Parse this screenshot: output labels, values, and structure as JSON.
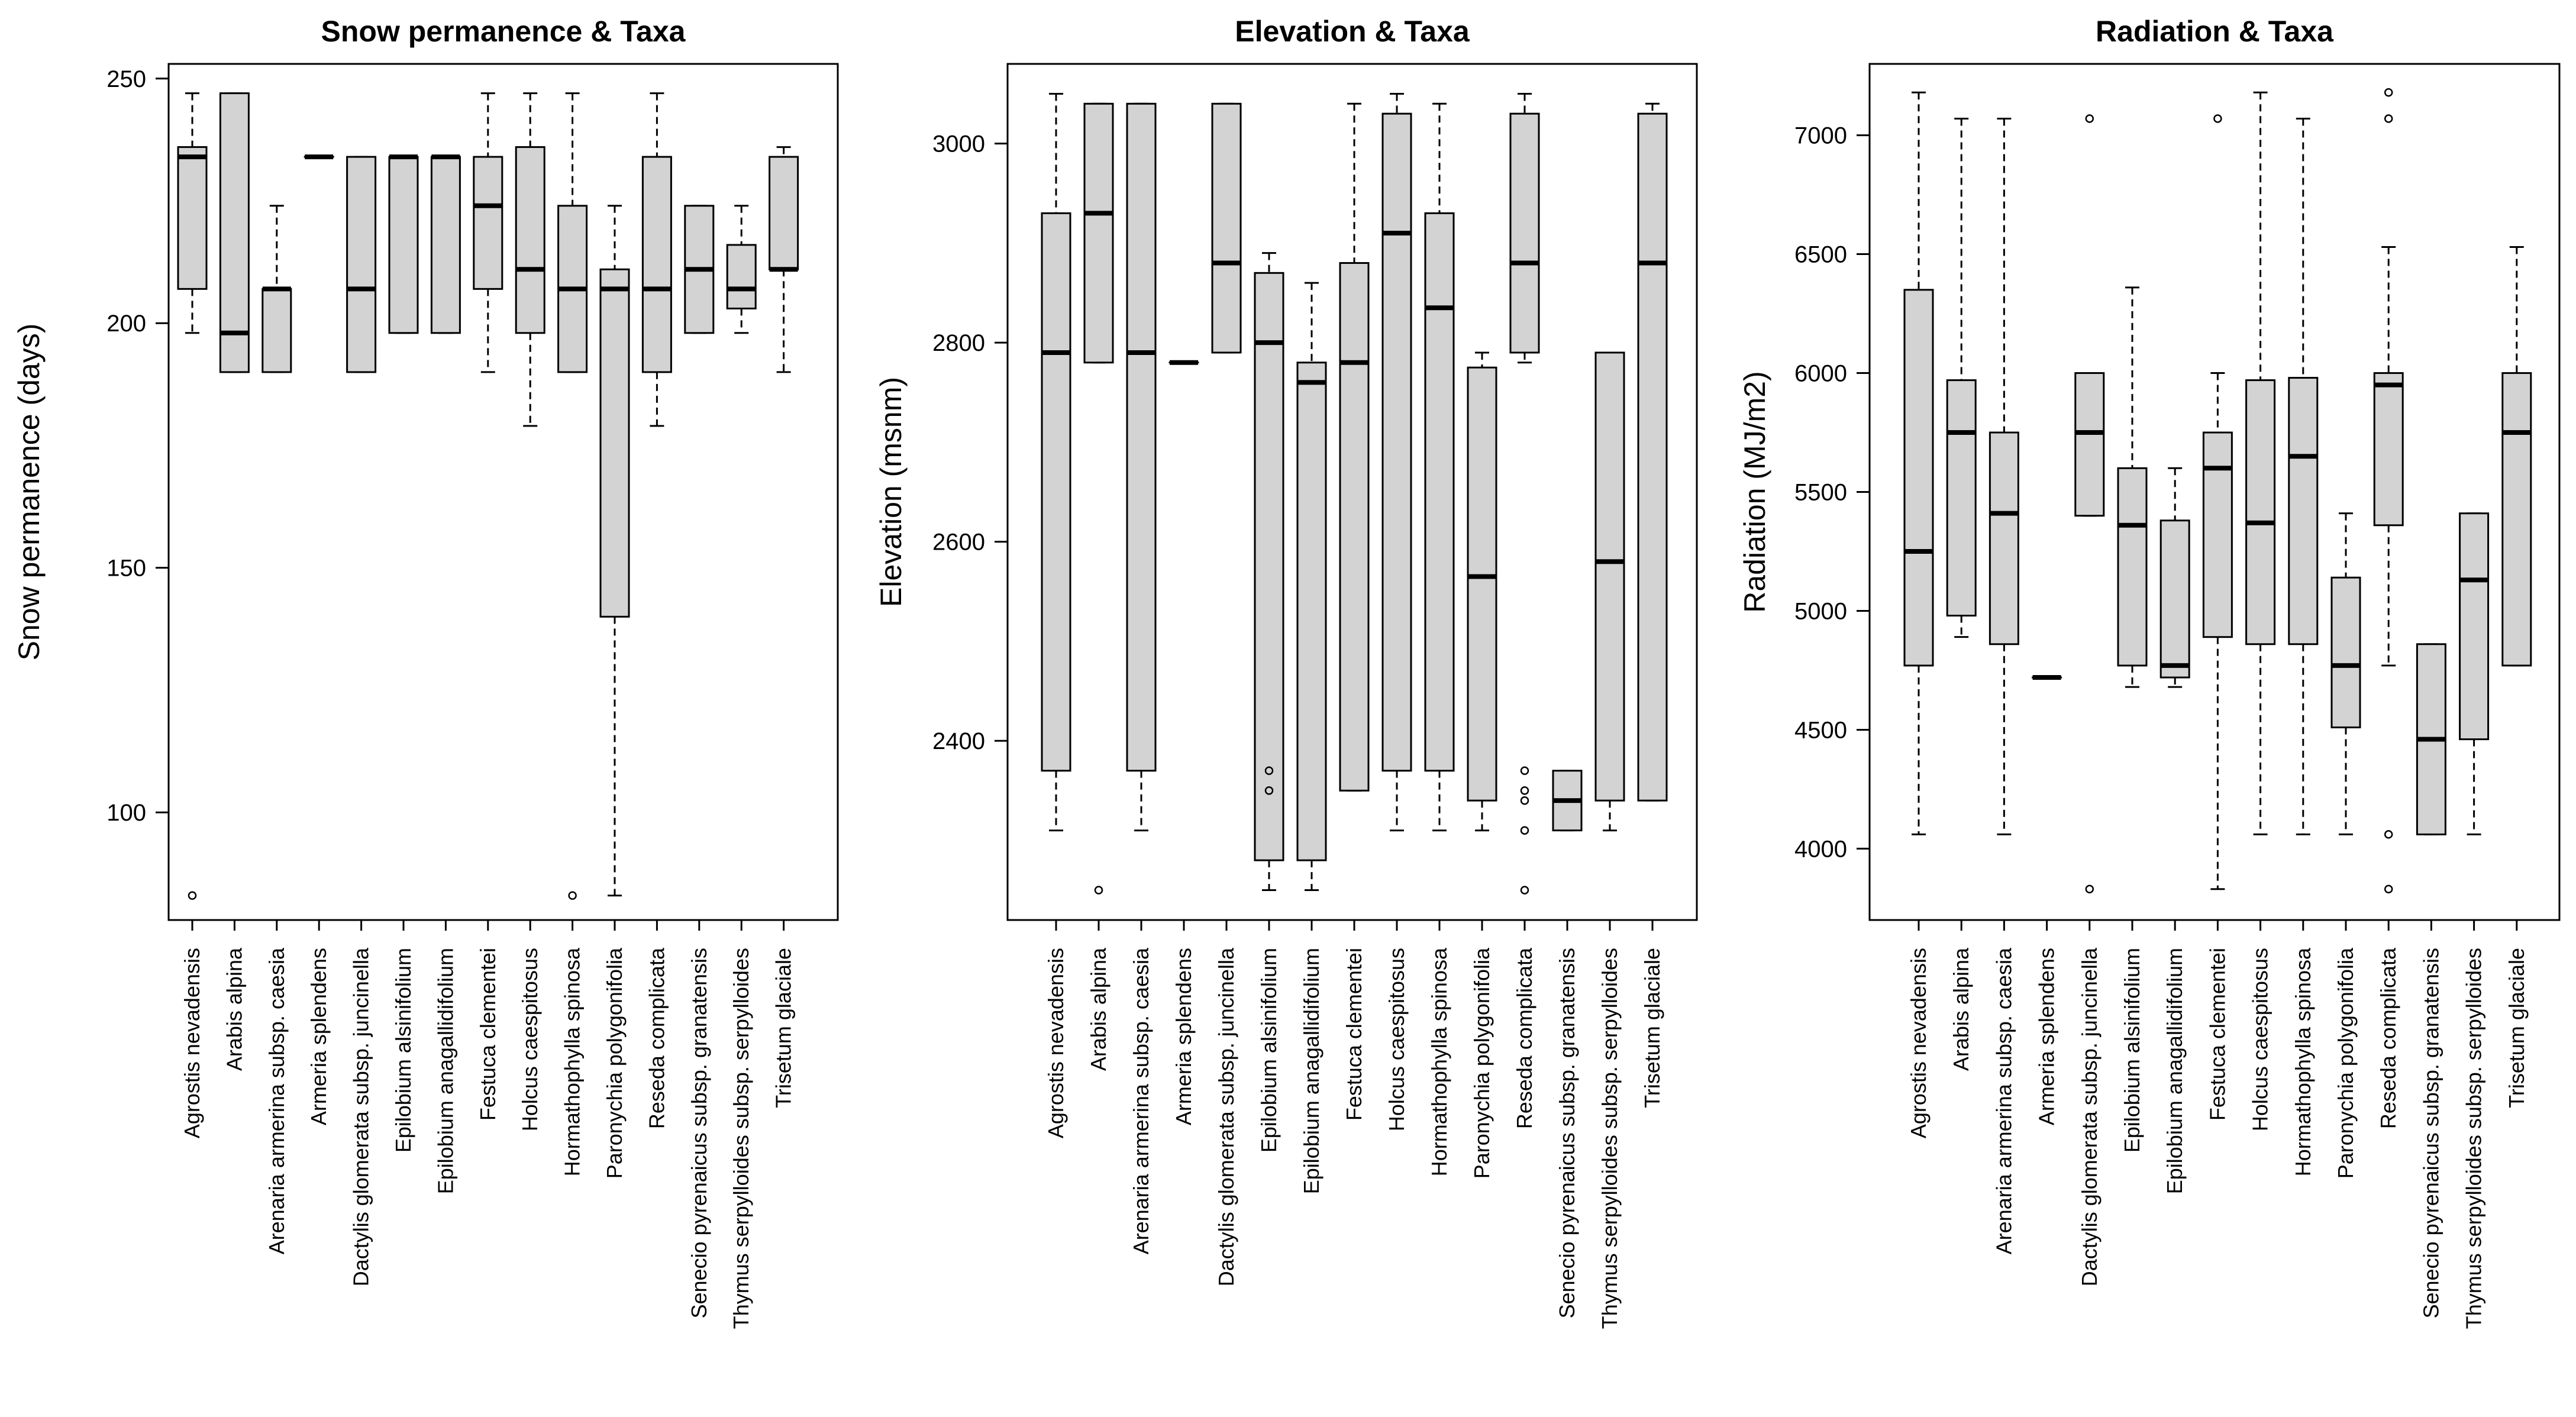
{
  "figure": {
    "panel_titles": [
      "Snow permanence & Taxa",
      "Elevation & Taxa",
      "Radiation & Taxa"
    ]
  },
  "colors": {
    "box_fill": "#d3d3d3",
    "stroke": "#000000",
    "background": "#ffffff"
  },
  "chart_data": [
    {
      "type": "boxplot",
      "title": "Snow permanence & Taxa",
      "xlabel": "",
      "ylabel": "Snow permanence (days)",
      "ylim": [
        78,
        253
      ],
      "yticks": [
        100,
        150,
        200,
        250
      ],
      "grid": false,
      "categories": [
        "Agrostis nevadensis",
        "Arabis alpina",
        "Arenaria armerina subsp. caesia",
        "Armeria splendens",
        "Dactylis glomerata subsp. juncinella",
        "Epilobium alsinifolium",
        "Epilobium anagallidifolium",
        "Festuca clementei",
        "Holcus caespitosus",
        "Hormathophylla spinosa",
        "Paronychia polygonifolia",
        "Reseda complicata",
        "Senecio pyrenaicus subsp. granatensis",
        "Thymus serpylloides subsp. serpylloides",
        "Trisetum glaciale"
      ],
      "boxes": [
        {
          "whisker_low": 198,
          "q1": 207,
          "median": 234,
          "q3": 236,
          "whisker_high": 247,
          "outliers": [
            83
          ]
        },
        {
          "whisker_low": 190,
          "q1": 190,
          "median": 198,
          "q3": 247,
          "whisker_high": 247,
          "outliers": []
        },
        {
          "whisker_low": 190,
          "q1": 190,
          "median": 207,
          "q3": 207,
          "whisker_high": 224,
          "outliers": []
        },
        {
          "whisker_low": 234,
          "q1": 234,
          "median": 234,
          "q3": 234,
          "whisker_high": 234,
          "outliers": []
        },
        {
          "whisker_low": 190,
          "q1": 190,
          "median": 207,
          "q3": 234,
          "whisker_high": 234,
          "outliers": []
        },
        {
          "whisker_low": 198,
          "q1": 198,
          "median": 234,
          "q3": 234,
          "whisker_high": 234,
          "outliers": []
        },
        {
          "whisker_low": 198,
          "q1": 198,
          "median": 234,
          "q3": 234,
          "whisker_high": 234,
          "outliers": []
        },
        {
          "whisker_low": 190,
          "q1": 207,
          "median": 224,
          "q3": 234,
          "whisker_high": 247,
          "outliers": []
        },
        {
          "whisker_low": 179,
          "q1": 198,
          "median": 211,
          "q3": 236,
          "whisker_high": 247,
          "outliers": []
        },
        {
          "whisker_low": 190,
          "q1": 190,
          "median": 207,
          "q3": 224,
          "whisker_high": 247,
          "outliers": [
            83
          ]
        },
        {
          "whisker_low": 83,
          "q1": 140,
          "median": 207,
          "q3": 211,
          "whisker_high": 224,
          "outliers": []
        },
        {
          "whisker_low": 179,
          "q1": 190,
          "median": 207,
          "q3": 234,
          "whisker_high": 247,
          "outliers": []
        },
        {
          "whisker_low": 198,
          "q1": 198,
          "median": 211,
          "q3": 224,
          "whisker_high": 224,
          "outliers": []
        },
        {
          "whisker_low": 198,
          "q1": 203,
          "median": 207,
          "q3": 216,
          "whisker_high": 224,
          "outliers": []
        },
        {
          "whisker_low": 190,
          "q1": 211,
          "median": 211,
          "q3": 234,
          "whisker_high": 236,
          "outliers": []
        }
      ]
    },
    {
      "type": "boxplot",
      "title": "Elevation & Taxa",
      "xlabel": "",
      "ylabel": "Elevation (msnm)",
      "ylim": [
        2220,
        3080
      ],
      "yticks": [
        2400,
        2600,
        2800,
        3000
      ],
      "grid": false,
      "categories": [
        "Agrostis nevadensis",
        "Arabis alpina",
        "Arenaria armerina subsp. caesia",
        "Armeria splendens",
        "Dactylis glomerata subsp. juncinella",
        "Epilobium alsinifolium",
        "Epilobium anagallidifolium",
        "Festuca clementei",
        "Holcus caespitosus",
        "Hormathophylla spinosa",
        "Paronychia polygonifolia",
        "Reseda complicata",
        "Senecio pyrenaicus subsp. granatensis",
        "Thymus serpylloides subsp. serpylloides",
        "Trisetum glaciale"
      ],
      "boxes": [
        {
          "whisker_low": 2310,
          "q1": 2370,
          "median": 2790,
          "q3": 2930,
          "whisker_high": 3050,
          "outliers": []
        },
        {
          "whisker_low": 2780,
          "q1": 2780,
          "median": 2930,
          "q3": 3040,
          "whisker_high": 3040,
          "outliers": [
            2250
          ]
        },
        {
          "whisker_low": 2310,
          "q1": 2370,
          "median": 2790,
          "q3": 3040,
          "whisker_high": 3040,
          "outliers": []
        },
        {
          "whisker_low": 2780,
          "q1": 2780,
          "median": 2780,
          "q3": 2780,
          "whisker_high": 2780,
          "outliers": []
        },
        {
          "whisker_low": 2790,
          "q1": 2790,
          "median": 2880,
          "q3": 3040,
          "whisker_high": 3040,
          "outliers": []
        },
        {
          "whisker_low": 2250,
          "q1": 2280,
          "median": 2800,
          "q3": 2870,
          "whisker_high": 2890,
          "outliers": [
            2370,
            2350
          ]
        },
        {
          "whisker_low": 2250,
          "q1": 2280,
          "median": 2760,
          "q3": 2780,
          "whisker_high": 2860,
          "outliers": []
        },
        {
          "whisker_low": 2350,
          "q1": 2350,
          "median": 2780,
          "q3": 2880,
          "whisker_high": 3040,
          "outliers": []
        },
        {
          "whisker_low": 2310,
          "q1": 2370,
          "median": 2910,
          "q3": 3030,
          "whisker_high": 3050,
          "outliers": []
        },
        {
          "whisker_low": 2310,
          "q1": 2370,
          "median": 2835,
          "q3": 2930,
          "whisker_high": 3040,
          "outliers": []
        },
        {
          "whisker_low": 2310,
          "q1": 2340,
          "median": 2565,
          "q3": 2775,
          "whisker_high": 2790,
          "outliers": []
        },
        {
          "whisker_low": 2780,
          "q1": 2790,
          "median": 2880,
          "q3": 3030,
          "whisker_high": 3050,
          "outliers": [
            2370,
            2350,
            2340,
            2310,
            2250
          ]
        },
        {
          "whisker_low": 2310,
          "q1": 2310,
          "median": 2340,
          "q3": 2370,
          "whisker_high": 2370,
          "outliers": []
        },
        {
          "whisker_low": 2310,
          "q1": 2340,
          "median": 2580,
          "q3": 2790,
          "whisker_high": 2790,
          "outliers": []
        },
        {
          "whisker_low": 2340,
          "q1": 2340,
          "median": 2880,
          "q3": 3030,
          "whisker_high": 3040,
          "outliers": []
        }
      ]
    },
    {
      "type": "boxplot",
      "title": "Radiation & Taxa",
      "xlabel": "",
      "ylabel": "Radiation (MJ/m2)",
      "ylim": [
        3700,
        7300
      ],
      "yticks": [
        4000,
        4500,
        5000,
        5500,
        6000,
        6500,
        7000
      ],
      "grid": false,
      "categories": [
        "Agrostis nevadensis",
        "Arabis alpina",
        "Arenaria armerina subsp. caesia",
        "Armeria splendens",
        "Dactylis glomerata subsp. juncinella",
        "Epilobium alsinifolium",
        "Epilobium anagallidifolium",
        "Festuca clementei",
        "Holcus caespitosus",
        "Hormathophylla spinosa",
        "Paronychia polygonifolia",
        "Reseda complicata",
        "Senecio pyrenaicus subsp. granatensis",
        "Thymus serpylloides subsp. serpylloides",
        "Trisetum glaciale"
      ],
      "boxes": [
        {
          "whisker_low": 4060,
          "q1": 4770,
          "median": 5250,
          "q3": 6350,
          "whisker_high": 7180,
          "outliers": []
        },
        {
          "whisker_low": 4890,
          "q1": 4980,
          "median": 5750,
          "q3": 5970,
          "whisker_high": 7070,
          "outliers": []
        },
        {
          "whisker_low": 4060,
          "q1": 4860,
          "median": 5410,
          "q3": 5750,
          "whisker_high": 7070,
          "outliers": []
        },
        {
          "whisker_low": 4720,
          "q1": 4720,
          "median": 4720,
          "q3": 4720,
          "whisker_high": 4720,
          "outliers": []
        },
        {
          "whisker_low": 5400,
          "q1": 5400,
          "median": 5750,
          "q3": 6000,
          "whisker_high": 6000,
          "outliers": [
            7070,
            3830
          ]
        },
        {
          "whisker_low": 4680,
          "q1": 4770,
          "median": 5360,
          "q3": 5600,
          "whisker_high": 6360,
          "outliers": []
        },
        {
          "whisker_low": 4680,
          "q1": 4720,
          "median": 4770,
          "q3": 5380,
          "whisker_high": 5600,
          "outliers": []
        },
        {
          "whisker_low": 3830,
          "q1": 4890,
          "median": 5600,
          "q3": 5750,
          "whisker_high": 6000,
          "outliers": [
            7070
          ]
        },
        {
          "whisker_low": 4060,
          "q1": 4860,
          "median": 5370,
          "q3": 5970,
          "whisker_high": 7180,
          "outliers": []
        },
        {
          "whisker_low": 4060,
          "q1": 4860,
          "median": 5650,
          "q3": 5980,
          "whisker_high": 7070,
          "outliers": []
        },
        {
          "whisker_low": 4060,
          "q1": 4510,
          "median": 4770,
          "q3": 5140,
          "whisker_high": 5410,
          "outliers": []
        },
        {
          "whisker_low": 4770,
          "q1": 5360,
          "median": 5950,
          "q3": 6000,
          "whisker_high": 6530,
          "outliers": [
            7180,
            7070,
            4060,
            3830
          ]
        },
        {
          "whisker_low": 4060,
          "q1": 4060,
          "median": 4460,
          "q3": 4860,
          "whisker_high": 4860,
          "outliers": []
        },
        {
          "whisker_low": 4060,
          "q1": 4460,
          "median": 5130,
          "q3": 5410,
          "whisker_high": 5410,
          "outliers": []
        },
        {
          "whisker_low": 4770,
          "q1": 4770,
          "median": 5750,
          "q3": 6000,
          "whisker_high": 6530,
          "outliers": []
        }
      ]
    }
  ]
}
